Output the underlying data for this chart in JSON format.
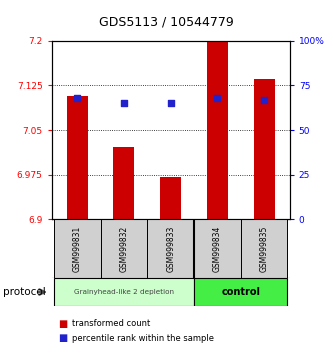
{
  "title": "GDS5113 / 10544779",
  "samples": [
    "GSM999831",
    "GSM999832",
    "GSM999833",
    "GSM999834",
    "GSM999835"
  ],
  "bar_tops": [
    7.108,
    7.022,
    6.972,
    7.198,
    7.135
  ],
  "bar_bottom": 6.9,
  "blue_pct": [
    68,
    65,
    65,
    68,
    67
  ],
  "ylim_left": [
    6.9,
    7.2
  ],
  "ylim_right": [
    0,
    100
  ],
  "yticks_left": [
    6.9,
    6.975,
    7.05,
    7.125,
    7.2
  ],
  "yticks_right": [
    0,
    25,
    50,
    75,
    100
  ],
  "ytick_labels_left": [
    "6.9",
    "6.975",
    "7.05",
    "7.125",
    "7.2"
  ],
  "ytick_labels_right": [
    "0",
    "25",
    "50",
    "75",
    "100%"
  ],
  "bar_color": "#cc0000",
  "blue_color": "#2222cc",
  "group1_label": "Grainyhead-like 2 depletion",
  "group2_label": "control",
  "group1_color": "#ccffcc",
  "group2_color": "#44ee44",
  "protocol_label": "protocol",
  "legend_red": "transformed count",
  "legend_blue": "percentile rank within the sample",
  "background_color": "#ffffff",
  "bar_width": 0.45
}
